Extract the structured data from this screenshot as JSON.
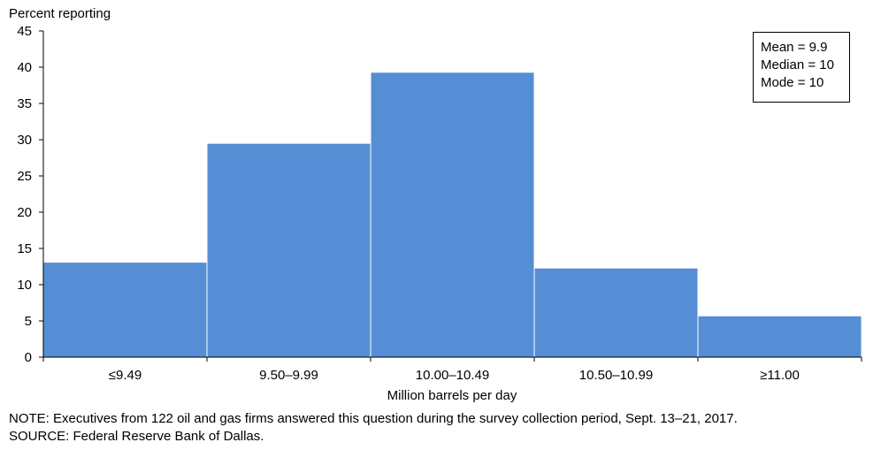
{
  "chart_data": {
    "type": "bar",
    "ylabel": "Percent reporting",
    "xlabel": "Million barrels per day",
    "categories": [
      "≤9.49",
      "9.50–9.99",
      "10.00–10.49",
      "10.50–10.99",
      "≥11.00"
    ],
    "values": [
      13.1,
      29.5,
      39.3,
      12.3,
      5.7
    ],
    "ylim": [
      0,
      45
    ],
    "yticks": [
      "0",
      "5",
      "10",
      "15",
      "20",
      "25",
      "30",
      "35",
      "40",
      "45"
    ],
    "bar_color": "#558ed5",
    "grid": false,
    "stats": [
      {
        "label": "Mean",
        "value": "= 9.9"
      },
      {
        "label": "Median",
        "value": "= 10"
      },
      {
        "label": "Mode",
        "value": "= 10"
      }
    ]
  },
  "notes": {
    "note": "NOTE:  Executives  from  122  oil  and  gas  firms  answered  this  question  during  the  survey  collection  period,  Sept.  13–21,  2017.",
    "source": "SOURCE:  Federal Reserve Bank of Dallas."
  }
}
